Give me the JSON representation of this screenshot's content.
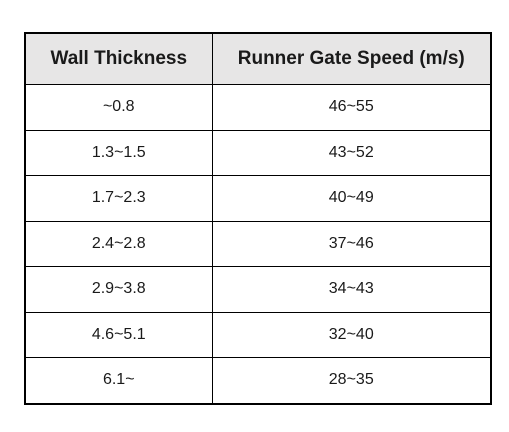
{
  "table": {
    "headers": [
      "Wall Thickness",
      "Runner Gate Speed (m/s)"
    ],
    "rows": [
      [
        "~0.8",
        "46~55"
      ],
      [
        "1.3~1.5",
        "43~52"
      ],
      [
        "1.7~2.3",
        "40~49"
      ],
      [
        "2.4~2.8",
        "37~46"
      ],
      [
        "2.9~3.8",
        "34~43"
      ],
      [
        "4.6~5.1",
        "32~40"
      ],
      [
        "6.1~",
        "28~35"
      ]
    ]
  },
  "colors": {
    "header_background": "#e7e6e6",
    "border": "#000000",
    "text": "#1a1a1a"
  }
}
